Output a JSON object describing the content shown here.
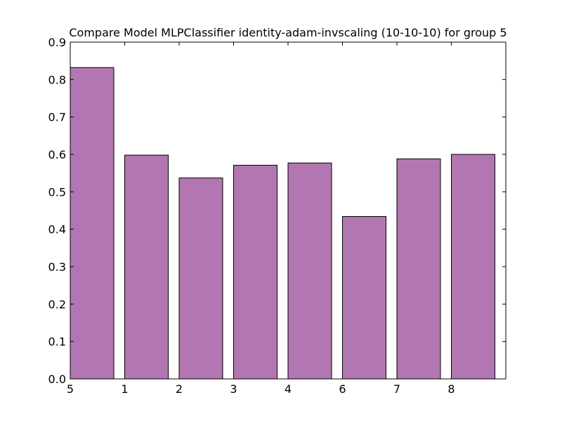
{
  "chart_data": {
    "type": "bar",
    "title": "Compare Model MLPClassifier identity-adam-invscaling (10-10-10) for group 5",
    "xlabel": "",
    "ylabel": "",
    "categories": [
      "5",
      "1",
      "2",
      "3",
      "4",
      "6",
      "7",
      "8"
    ],
    "values": [
      0.832,
      0.598,
      0.537,
      0.571,
      0.577,
      0.434,
      0.588,
      0.6
    ],
    "ylim": [
      0.0,
      0.9
    ],
    "yticks": [
      "0.0",
      "0.1",
      "0.2",
      "0.3",
      "0.4",
      "0.5",
      "0.6",
      "0.7",
      "0.8",
      "0.9"
    ],
    "grid": false,
    "legend": "none",
    "bar_color": "#b276b2",
    "edge_color": "#000000"
  }
}
